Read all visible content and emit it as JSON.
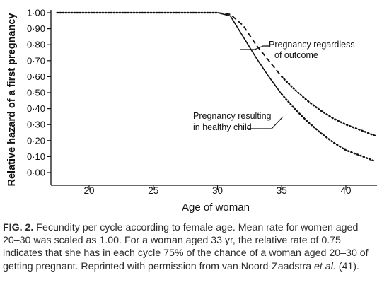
{
  "chart_data": {
    "type": "line",
    "xlabel": "Age of woman",
    "ylabel": "Relative hazard of a first pregnancy",
    "xlim": [
      17,
      42.5
    ],
    "ylim": [
      0,
      1.0
    ],
    "x_ticks": [
      "20",
      "25",
      "30",
      "35",
      "40"
    ],
    "y_ticks": [
      "0·00",
      "0·10",
      "0·20",
      "0·30",
      "0·40",
      "0·50",
      "0·60",
      "0·70",
      "0·80",
      "0·90",
      "1·00"
    ],
    "series": [
      {
        "name": "Pregnancy regardless of outcome",
        "style": "dashed-then-dotted",
        "x": [
          17.5,
          30,
          31,
          32,
          33,
          34,
          35,
          36,
          37,
          38,
          39,
          40,
          41,
          42.3
        ],
        "y": [
          1.0,
          1.0,
          0.99,
          0.92,
          0.8,
          0.7,
          0.6,
          0.52,
          0.45,
          0.39,
          0.34,
          0.3,
          0.27,
          0.23
        ]
      },
      {
        "name": "Pregnancy resulting in healthy child",
        "style": "solid-then-dotted",
        "x": [
          17.5,
          30,
          31,
          32,
          33,
          34,
          35,
          36,
          37,
          38,
          39,
          40,
          41,
          42.3
        ],
        "y": [
          1.0,
          1.0,
          0.98,
          0.85,
          0.72,
          0.6,
          0.49,
          0.4,
          0.32,
          0.25,
          0.19,
          0.14,
          0.11,
          0.07
        ]
      }
    ],
    "annotations": [
      {
        "lines": [
          "Pregnancy regardless",
          "of outcome"
        ]
      },
      {
        "lines": [
          "Pregnancy resulting",
          "in healthy child"
        ]
      }
    ]
  },
  "caption": {
    "fig_label": "FIG. 2.",
    "text_1": " Fecundity per cycle according to female age. Mean rate for women aged 20–30 was scaled as 1.00. For a woman aged 33 yr, the relative rate of 0.75 indicates that she has in each cycle 75% of the chance of a woman aged 20–30 of getting pregnant. Reprinted with permission from van Noord-Zaadstra ",
    "et_al": "et al.",
    "text_2": " (41)."
  }
}
